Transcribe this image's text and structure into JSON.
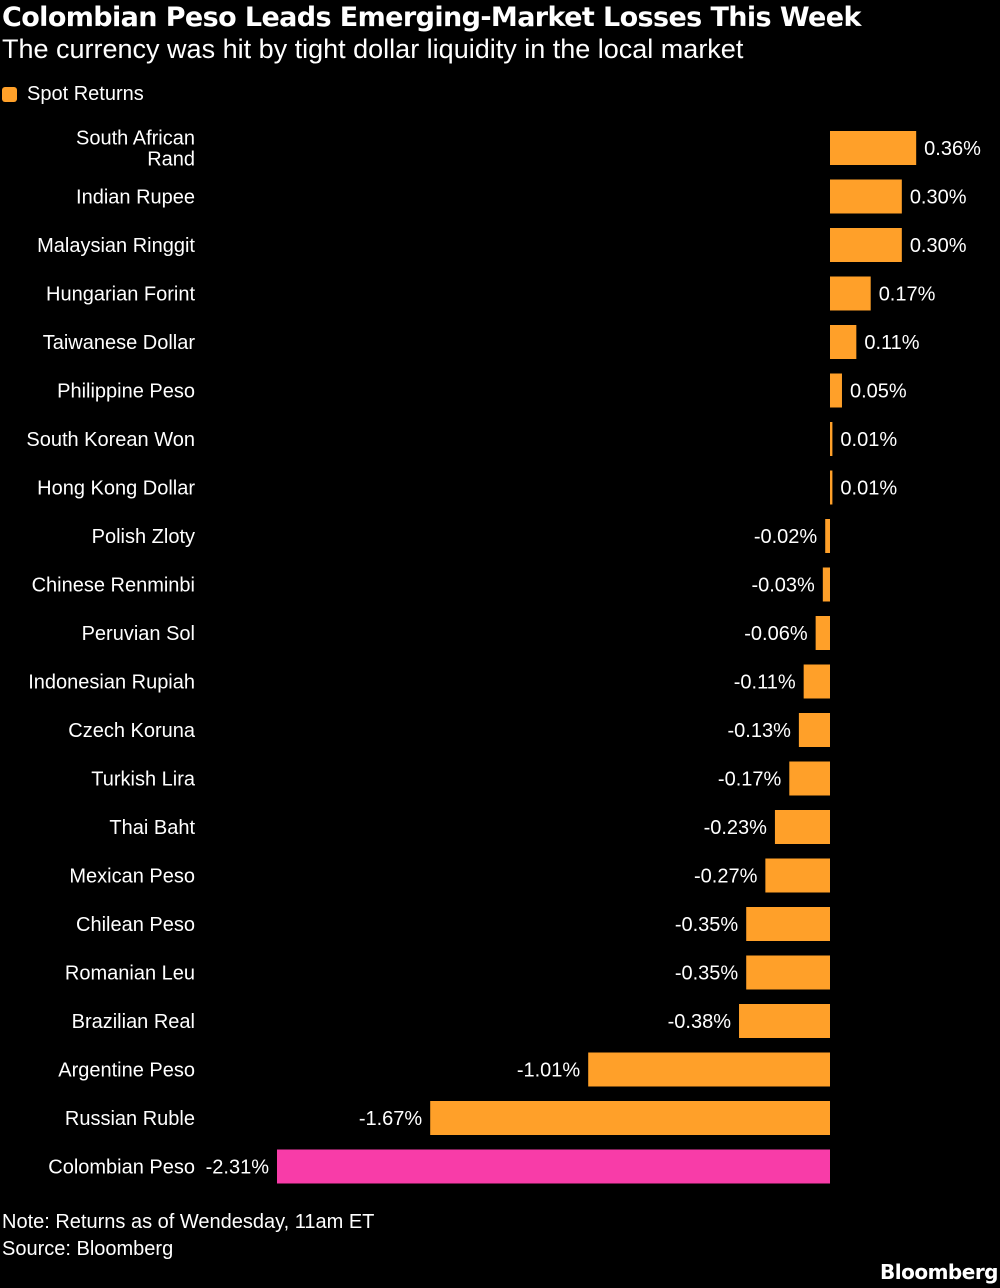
{
  "colors": {
    "background": "#000000",
    "text": "#ffffff",
    "bar": "#ffa029",
    "highlight": "#f83ca8"
  },
  "legend": {
    "label": "Spot Returns",
    "color": "#ffa029"
  },
  "footer": {
    "note": "Note: Returns as of Wendesday, 11am ET",
    "source": "Source: Bloomberg",
    "brand": "Bloomberg"
  },
  "chart_data": {
    "type": "bar",
    "orientation": "horizontal",
    "title": "Colombian Peso Leads Emerging-Market Losses This Week",
    "subtitle": "The currency was hit by tight dollar liquidity in the local market",
    "categories": [
      [
        "South African",
        "Rand"
      ],
      "Indian Rupee",
      "Malaysian Ringgit",
      "Hungarian Forint",
      "Taiwanese Dollar",
      "Philippine Peso",
      "South Korean Won",
      "Hong Kong Dollar",
      "Polish Zloty",
      "Chinese Renminbi",
      "Peruvian Sol",
      "Indonesian Rupiah",
      "Czech Koruna",
      "Turkish Lira",
      "Thai Baht",
      "Mexican Peso",
      "Chilean Peso",
      "Romanian Leu",
      "Brazilian Real",
      "Argentine Peso",
      "Russian Ruble",
      "Colombian Peso"
    ],
    "series": [
      {
        "name": "Spot Returns",
        "values": [
          0.36,
          0.3,
          0.3,
          0.17,
          0.11,
          0.05,
          0.01,
          0.01,
          -0.02,
          -0.03,
          -0.06,
          -0.11,
          -0.13,
          -0.17,
          -0.23,
          -0.27,
          -0.35,
          -0.35,
          -0.38,
          -1.01,
          -1.67,
          -2.31
        ],
        "labels": [
          "0.36%",
          "0.30%",
          "0.30%",
          "0.17%",
          "0.11%",
          "0.05%",
          "0.01%",
          "0.01%",
          "-0.02%",
          "-0.03%",
          "-0.06%",
          "-0.11%",
          "-0.13%",
          "-0.17%",
          "-0.23%",
          "-0.27%",
          "-0.35%",
          "-0.35%",
          "-0.38%",
          "-1.01%",
          "-1.67%",
          "-2.31%"
        ]
      }
    ],
    "highlight_category": "Colombian Peso",
    "xlim": [
      -2.31,
      0.36
    ],
    "grid": false,
    "legend_position": "top-left"
  }
}
